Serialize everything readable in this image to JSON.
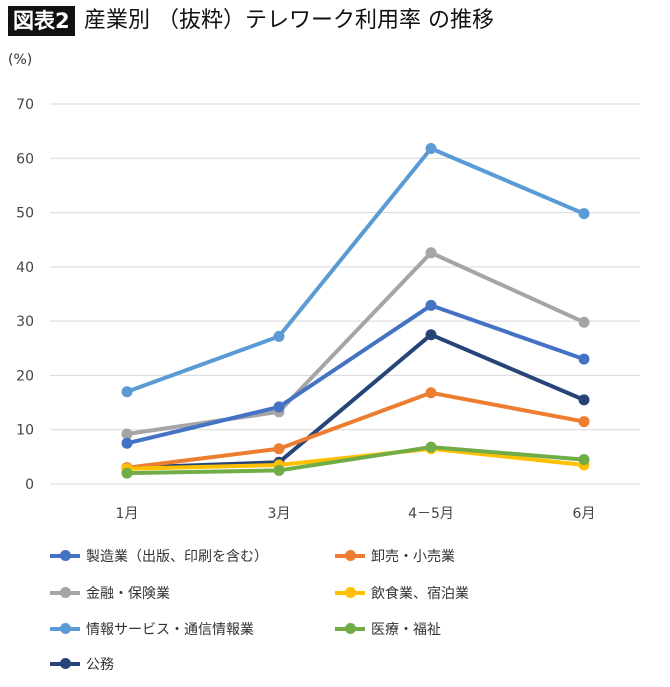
{
  "badge": "図表2",
  "title": "産業別 （抜粋）テレワーク利用率 の推移",
  "chart_data": {
    "type": "line",
    "title": "産業別 （抜粋）テレワーク利用率 の推移",
    "ylabel": "(%)",
    "categories": [
      "1月",
      "3月",
      "4－5月",
      "6月"
    ],
    "ylim": [
      0,
      70
    ],
    "yticks": [
      0,
      10,
      20,
      30,
      40,
      50,
      60,
      70
    ],
    "grid": true,
    "legend": "bottom",
    "series": [
      {
        "name": "製造業（出版、印刷を含む）",
        "color": "#4472C4",
        "values": [
          7.5,
          14.2,
          32.9,
          23.0
        ]
      },
      {
        "name": "卸売・小売業",
        "color": "#ED7D31",
        "values": [
          3.0,
          6.5,
          16.8,
          11.5
        ]
      },
      {
        "name": "金融・保険業",
        "color": "#A5A5A5",
        "values": [
          9.2,
          13.3,
          42.6,
          29.8
        ]
      },
      {
        "name": "飲食業、宿泊業",
        "color": "#FFC000",
        "values": [
          2.8,
          3.5,
          6.5,
          3.5
        ]
      },
      {
        "name": "情報サービス・通信情報業",
        "color": "#5B9BD5",
        "values": [
          17.0,
          27.2,
          61.8,
          49.8
        ]
      },
      {
        "name": "医療・福祉",
        "color": "#70AD47",
        "values": [
          2.0,
          2.5,
          6.8,
          4.5
        ]
      },
      {
        "name": "公務",
        "color": "#264478",
        "values": [
          3.0,
          4.0,
          27.5,
          15.5
        ]
      }
    ]
  }
}
